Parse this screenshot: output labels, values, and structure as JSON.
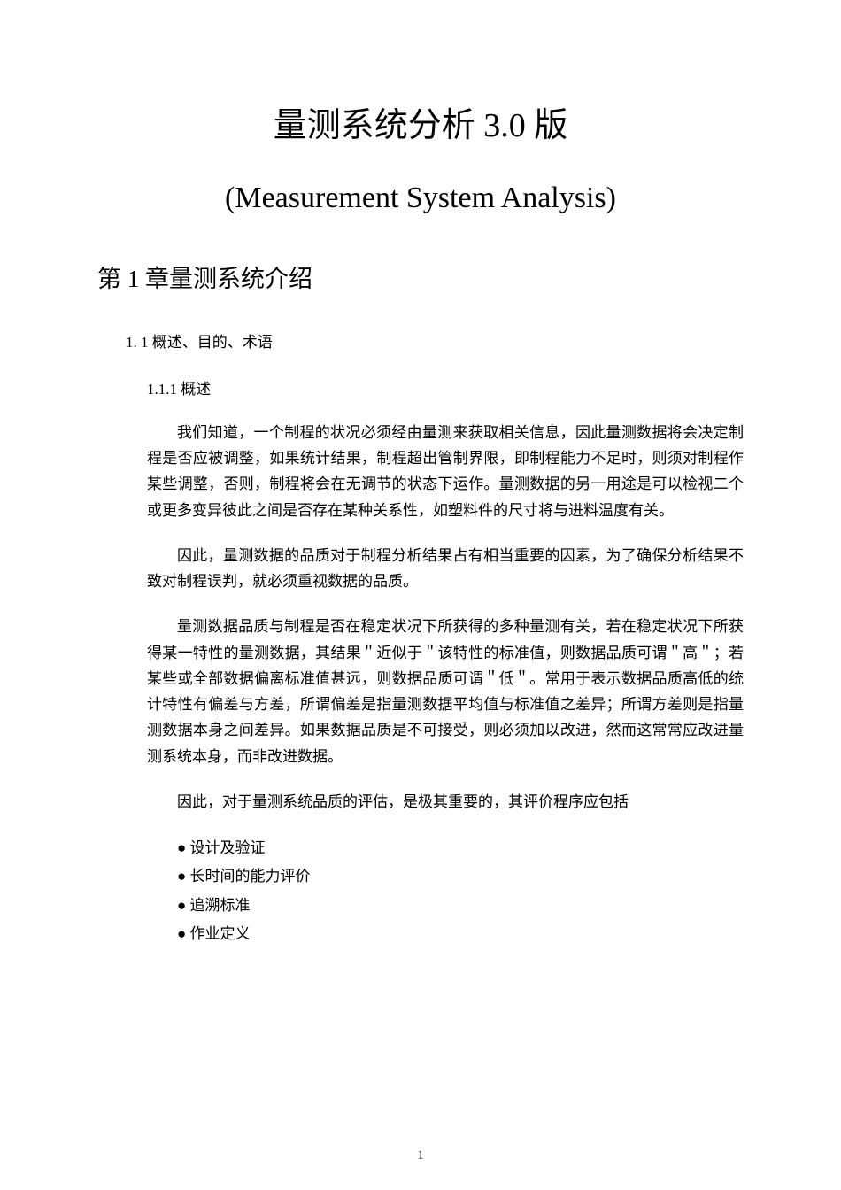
{
  "title_main": "量测系统分析 3.0 版",
  "title_sub": "(Measurement System Analysis)",
  "chapter": "第 1 章量测系统介绍",
  "section_1_1_num": "1. ",
  "section_1_1_text": "1 概述、目的、术语",
  "subsection_1_1_1_num": "1.1.1 ",
  "subsection_1_1_1_text": "概述",
  "para1": "我们知道，一个制程的状况必须经由量测来获取相关信息，因此量测数据将会决定制程是否应被调整，如果统计结果，制程超出管制界限，即制程能力不足时，则须对制程作某些调整，否则，制程将会在无调节的状态下运作。量测数据的另一用途是可以检视二个或更多变异彼此之间是否存在某种关系性，如塑料件的尺寸将与进料温度有关。",
  "para2": "因此，量测数据的品质对于制程分析结果占有相当重要的因素，为了确保分析结果不致对制程误判，就必须重视数据的品质。",
  "para3": "量测数据品质与制程是否在稳定状况下所获得的多种量测有关，若在稳定状况下所获得某一特性的量测数据，其结果＂近似于＂该特性的标准值，则数据品质可谓＂高＂；若某些或全部数据偏离标准值甚远，则数据品质可谓＂低＂。常用于表示数据品质高低的统计特性有偏差与方差，所谓偏差是指量测数据平均值与标准值之差异；所谓方差则是指量测数据本身之间差异。如果数据品质是不可接受，则必须加以改进，然而这常常应改进量测系统本身，而非改进数据。",
  "para4": "因此，对于量测系统品质的评估，是极其重要的，其评价程序应包括",
  "bullets": [
    "设计及验证",
    "长时间的能力评价",
    "追溯标准",
    "作业定义"
  ],
  "page_number": "1"
}
